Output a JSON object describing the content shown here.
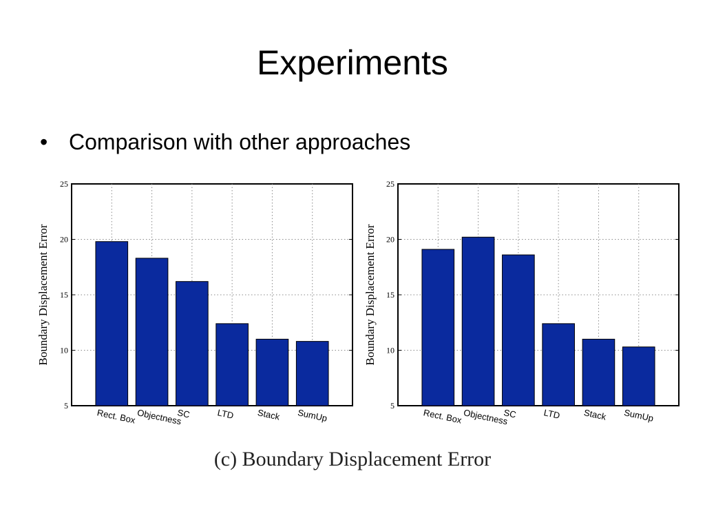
{
  "slide": {
    "title": "Experiments",
    "bullet_marker": "•",
    "bullet_text": "Comparison with other approaches",
    "caption": "(c)  Boundary Displacement Error"
  },
  "colors": {
    "bar": "#0a2a9e",
    "grid": "#8a8a8a",
    "axis": "#000000"
  },
  "chart_data": [
    {
      "type": "bar",
      "title": "",
      "xlabel": "",
      "ylabel": "Boundary Displacement Error",
      "categories": [
        "Rect. Box",
        "Objectness",
        "SC",
        "LTD",
        "Stack",
        "SumUp"
      ],
      "values": [
        19.8,
        18.3,
        16.2,
        12.4,
        11.0,
        10.8
      ],
      "ylim": [
        5,
        25
      ],
      "yticks": [
        5,
        10,
        15,
        20,
        25
      ],
      "grid": true
    },
    {
      "type": "bar",
      "title": "",
      "xlabel": "",
      "ylabel": "Boundary Displacement Error",
      "categories": [
        "Rect. Box",
        "Objectness",
        "SC",
        "LTD",
        "Stack",
        "SumUp"
      ],
      "values": [
        19.1,
        20.2,
        18.6,
        12.4,
        11.0,
        10.3
      ],
      "ylim": [
        5,
        25
      ],
      "yticks": [
        5,
        10,
        15,
        20,
        25
      ],
      "grid": true
    }
  ]
}
